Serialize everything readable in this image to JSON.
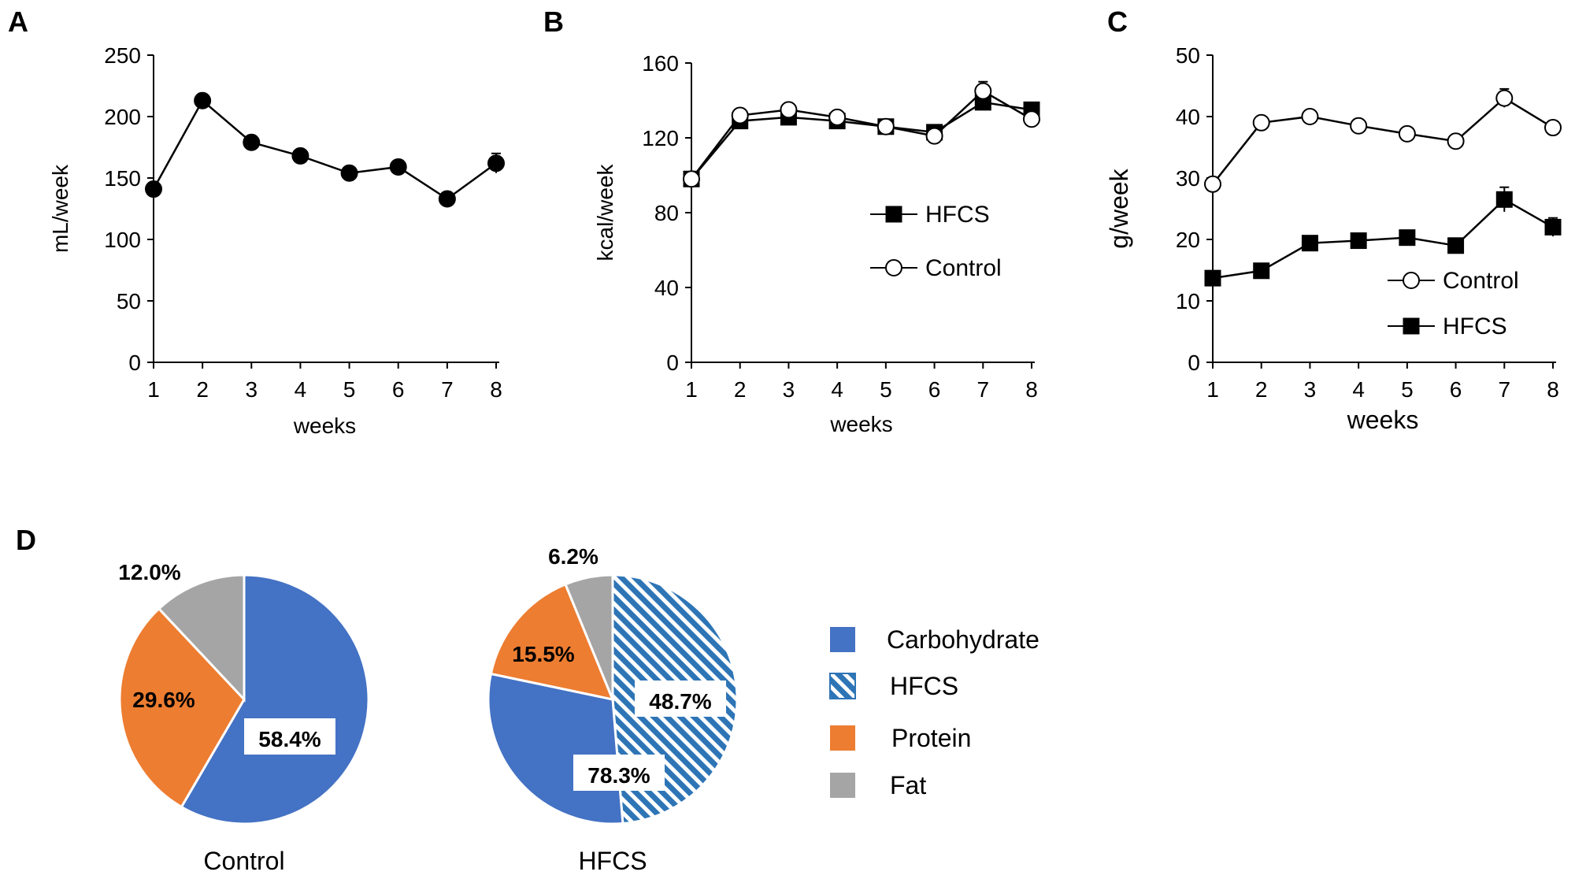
{
  "chart_data": [
    {
      "panel": "A",
      "type": "line",
      "xlabel": "weeks",
      "ylabel": "mL/week",
      "x": [
        1,
        2,
        3,
        4,
        5,
        6,
        7,
        8
      ],
      "xticks": [
        "1",
        "2",
        "3",
        "4",
        "5",
        "6",
        "7",
        "8"
      ],
      "ylim": [
        0,
        250
      ],
      "yticks": [
        "0",
        "50",
        "100",
        "150",
        "200",
        "250"
      ],
      "series": [
        {
          "values": [
            141,
            213,
            179,
            168,
            154,
            159,
            133,
            162
          ],
          "marker": "filled-circle",
          "errors": [
            0,
            4,
            0,
            0,
            0,
            0,
            0,
            8
          ]
        }
      ],
      "grid": false
    },
    {
      "panel": "B",
      "type": "line",
      "xlabel": "weeks",
      "ylabel": "kcal/week",
      "x": [
        1,
        2,
        3,
        4,
        5,
        6,
        7,
        8
      ],
      "xticks": [
        "1",
        "2",
        "3",
        "4",
        "5",
        "6",
        "7",
        "8"
      ],
      "ylim": [
        0,
        160
      ],
      "yticks": [
        "0",
        "40",
        "80",
        "120",
        "160"
      ],
      "legend_position": "center-right",
      "series": [
        {
          "name": "HFCS",
          "values": [
            98,
            129,
            131,
            129,
            126,
            123,
            139,
            135
          ],
          "marker": "filled-square",
          "errors": [
            0,
            0,
            0,
            0,
            0,
            0,
            4,
            0
          ]
        },
        {
          "name": "Control",
          "values": [
            98,
            132,
            135,
            131,
            126,
            121,
            145,
            130
          ],
          "marker": "open-circle",
          "errors": [
            0,
            0,
            0,
            0,
            0,
            0,
            5,
            0
          ]
        }
      ],
      "grid": false
    },
    {
      "panel": "C",
      "type": "line",
      "xlabel": "weeks",
      "ylabel": "g/week",
      "x": [
        1,
        2,
        3,
        4,
        5,
        6,
        7,
        8
      ],
      "xticks": [
        "1",
        "2",
        "3",
        "4",
        "5",
        "6",
        "7",
        "8"
      ],
      "ylim": [
        0,
        50
      ],
      "yticks": [
        "0",
        "10",
        "20",
        "30",
        "40",
        "50"
      ],
      "legend_position": "bottom-right",
      "series": [
        {
          "name": "Control",
          "values": [
            29,
            39,
            40,
            38.5,
            37.2,
            36,
            43,
            38.2
          ],
          "marker": "open-circle",
          "errors": [
            0,
            0,
            0,
            0,
            0,
            0,
            1.5,
            0
          ]
        },
        {
          "name": "HFCS",
          "values": [
            13.7,
            14.9,
            19.4,
            19.8,
            20.3,
            19,
            26.5,
            22
          ],
          "marker": "filled-square",
          "errors": [
            0,
            0,
            0,
            0,
            0,
            0,
            2,
            1.5
          ]
        }
      ],
      "grid": false
    },
    {
      "panel": "D",
      "type": "pie",
      "pies": [
        {
          "title": "Control",
          "slices": [
            {
              "category": "Carbohydrate",
              "value": 58.4,
              "label": "58.4%"
            },
            {
              "category": "Protein",
              "value": 29.6,
              "label": "29.6%"
            },
            {
              "category": "Fat",
              "value": 12.0,
              "label": "12.0%"
            }
          ]
        },
        {
          "title": "HFCS",
          "slices": [
            {
              "category": "HFCS",
              "value": 48.7,
              "label": "48.7%"
            },
            {
              "category": "Carbohydrate",
              "value": 29.6,
              "label": "78.3%"
            },
            {
              "category": "Protein",
              "value": 15.5,
              "label": "15.5%"
            },
            {
              "category": "Fat",
              "value": 6.2,
              "label": "6.2%"
            }
          ]
        }
      ],
      "legend": [
        {
          "name": "Carbohydrate",
          "color": "#4472c4",
          "pattern": "solid"
        },
        {
          "name": "HFCS",
          "color": "#2e75b6",
          "pattern": "diagonal-stripes"
        },
        {
          "name": "Protein",
          "color": "#ed7d31",
          "pattern": "solid"
        },
        {
          "name": "Fat",
          "color": "#a5a5a5",
          "pattern": "solid"
        }
      ]
    }
  ],
  "colors": {
    "carbohydrate": "#4472c4",
    "hfcs": "#2e75b6",
    "protein": "#ed7d31",
    "fat": "#a5a5a5"
  }
}
